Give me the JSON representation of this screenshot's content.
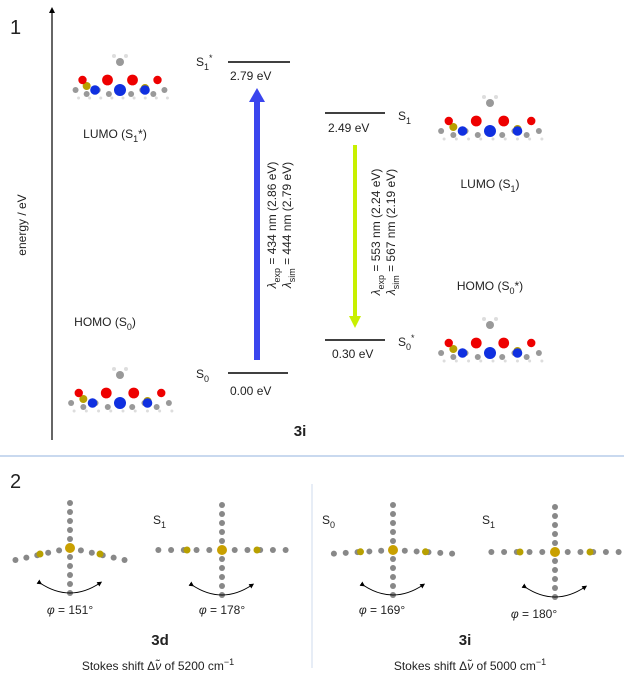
{
  "panel1": {
    "label": "1",
    "axis_label": "energy / eV",
    "compound": "3i",
    "levels": [
      {
        "state": [
          {
            "text": "S"
          },
          {
            "text": "1",
            "pos": "sub"
          },
          {
            "text": "*",
            "pos": "sup"
          }
        ],
        "energy": "2.79 eV"
      },
      {
        "state": [
          {
            "text": "S"
          },
          {
            "text": "1",
            "pos": "sub"
          }
        ],
        "energy": "2.49 eV"
      },
      {
        "state": [
          {
            "text": "S"
          },
          {
            "text": "0",
            "pos": "sub"
          },
          {
            "text": "*",
            "pos": "sup"
          }
        ],
        "energy": "0.30 eV"
      },
      {
        "state": [
          {
            "text": "S"
          },
          {
            "text": "0",
            "pos": "sub"
          }
        ],
        "energy": "0.00 eV"
      }
    ],
    "absorption": [
      [
        {
          "text": "λ",
          "pos": "italic"
        },
        {
          "text": "exp",
          "pos": "sub"
        },
        {
          "text": " = 434 nm (2.86 eV)"
        }
      ],
      [
        {
          "text": "λ",
          "pos": "italic"
        },
        {
          "text": "sim",
          "pos": "sub"
        },
        {
          "text": " = 444 nm (2.79 eV)"
        }
      ]
    ],
    "emission": [
      [
        {
          "text": "λ",
          "pos": "italic"
        },
        {
          "text": "exp",
          "pos": "sub"
        },
        {
          "text": " = 553 nm (2.24 eV)"
        }
      ],
      [
        {
          "text": "λ",
          "pos": "italic"
        },
        {
          "text": "sim",
          "pos": "sub"
        },
        {
          "text": " = 567 nm (2.19 eV)"
        }
      ]
    ],
    "orbitals": [
      [
        {
          "text": "LUMO (S"
        },
        {
          "text": "1",
          "pos": "sub"
        },
        {
          "text": "*)"
        }
      ],
      [
        {
          "text": "HOMO (S"
        },
        {
          "text": "0",
          "pos": "sub"
        },
        {
          "text": ")"
        }
      ],
      [
        {
          "text": "LUMO (S"
        },
        {
          "text": "1",
          "pos": "sub"
        },
        {
          "text": ")"
        }
      ],
      [
        {
          "text": "HOMO (S"
        },
        {
          "text": "0",
          "pos": "sub"
        },
        {
          "text": "*)"
        }
      ]
    ]
  },
  "panel2": {
    "label": "2",
    "compounds": [
      {
        "name": "3d",
        "states": [
          null,
          [
            {
              "text": "S"
            },
            {
              "text": "1",
              "pos": "sub"
            }
          ]
        ],
        "angles": [
          [
            {
              "text": "φ",
              "pos": "italic"
            },
            {
              "text": " = 151°"
            }
          ],
          [
            {
              "text": "φ",
              "pos": "italic"
            },
            {
              "text": " = 178°"
            }
          ]
        ],
        "stokes": [
          {
            "text": "Stokes shift Δ"
          },
          {
            "text": "ν̃",
            "pos": "italic"
          },
          {
            "text": " of 5200 cm"
          },
          {
            "text": "−1",
            "pos": "sup"
          }
        ]
      },
      {
        "name": "3i",
        "states": [
          [
            {
              "text": "S"
            },
            {
              "text": "0",
              "pos": "sub"
            }
          ],
          [
            {
              "text": "S"
            },
            {
              "text": "1",
              "pos": "sub"
            }
          ]
        ],
        "angles": [
          [
            {
              "text": "φ",
              "pos": "italic"
            },
            {
              "text": " = 169°"
            }
          ],
          [
            {
              "text": "φ",
              "pos": "italic"
            },
            {
              "text": " = 180°"
            }
          ]
        ],
        "stokes": [
          {
            "text": "Stokes shift Δ"
          },
          {
            "text": "ν̃",
            "pos": "italic"
          },
          {
            "text": " of 5000 cm"
          },
          {
            "text": "−1",
            "pos": "sup"
          }
        ]
      }
    ]
  }
}
